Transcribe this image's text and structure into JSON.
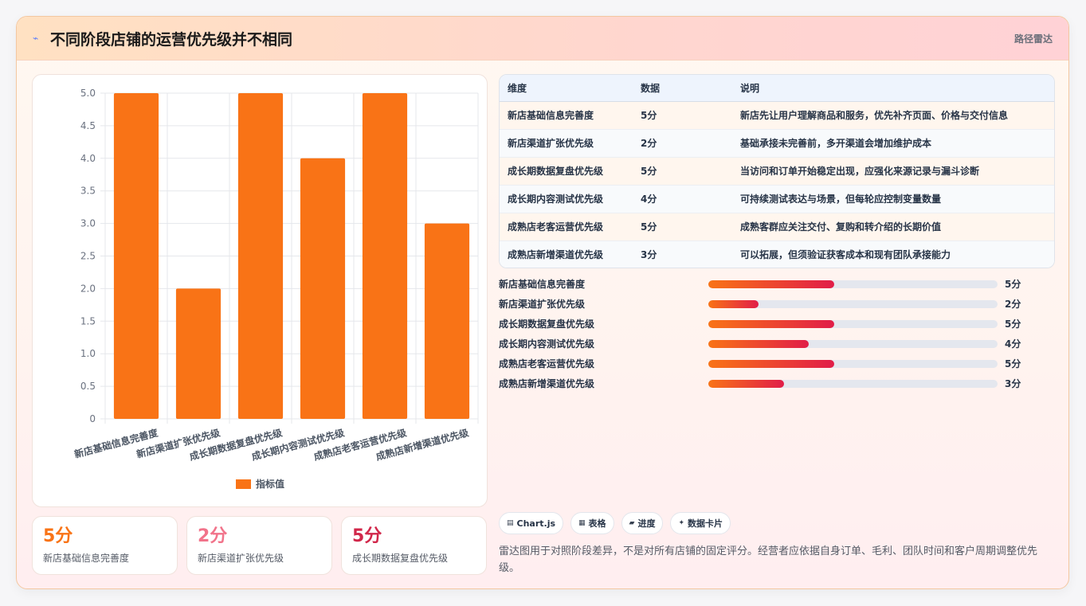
{
  "header": {
    "title": "不同阶段店铺的运营优先级并不相同",
    "badge": "路径雷达"
  },
  "chart_data": {
    "type": "bar",
    "categories": [
      "新店基础信息完善度",
      "新店渠道扩张优先级",
      "成长期数据复盘优先级",
      "成长期内容测试优先级",
      "成熟店老客运营优先级",
      "成熟店新增渠道优先级"
    ],
    "series": [
      {
        "name": "指标值",
        "values": [
          5,
          2,
          5,
          4,
          5,
          3
        ],
        "color": "#f97316"
      }
    ],
    "yticks": [
      "0",
      "0.5",
      "1.0",
      "1.5",
      "2.0",
      "2.5",
      "3.0",
      "3.5",
      "4.0",
      "4.5",
      "5.0"
    ],
    "ylim": [
      0,
      5
    ],
    "grid": true,
    "legend_position": "bottom"
  },
  "stats": [
    {
      "value": "5分",
      "label": "新店基础信息完善度",
      "color": "#f97316"
    },
    {
      "value": "2分",
      "label": "新店渠道扩张优先级",
      "color": "#f1738a"
    },
    {
      "value": "5分",
      "label": "成长期数据复盘优先级",
      "color": "#d1274a"
    }
  ],
  "table": {
    "headers": [
      "维度",
      "数据",
      "说明"
    ],
    "rows": [
      [
        "新店基础信息完善度",
        "5分",
        "新店先让用户理解商品和服务，优先补齐页面、价格与交付信息"
      ],
      [
        "新店渠道扩张优先级",
        "2分",
        "基础承接未完善前，多开渠道会增加维护成本"
      ],
      [
        "成长期数据复盘优先级",
        "5分",
        "当访问和订单开始稳定出现，应强化来源记录与漏斗诊断"
      ],
      [
        "成长期内容测试优先级",
        "4分",
        "可持续测试表达与场景，但每轮应控制变量数量"
      ],
      [
        "成熟店老客运营优先级",
        "5分",
        "成熟客群应关注交付、复购和转介绍的长期价值"
      ],
      [
        "成熟店新增渠道优先级",
        "3分",
        "可以拓展，但须验证获客成本和现有团队承接能力"
      ]
    ]
  },
  "progress": [
    {
      "label": "新店基础信息完善度",
      "value": "5分",
      "fraction": 0.435
    },
    {
      "label": "新店渠道扩张优先级",
      "value": "2分",
      "fraction": 0.174
    },
    {
      "label": "成长期数据复盘优先级",
      "value": "5分",
      "fraction": 0.435
    },
    {
      "label": "成长期内容测试优先级",
      "value": "4分",
      "fraction": 0.348
    },
    {
      "label": "成熟店老客运营优先级",
      "value": "5分",
      "fraction": 0.435
    },
    {
      "label": "成熟店新增渠道优先级",
      "value": "3分",
      "fraction": 0.261
    }
  ],
  "chips": [
    {
      "icon": "▤",
      "label": "Chart.js",
      "icon_name": "chart-icon"
    },
    {
      "icon": "▦",
      "label": "表格",
      "icon_name": "table-icon"
    },
    {
      "icon": "▰",
      "label": "进度",
      "icon_name": "progress-icon"
    },
    {
      "icon": "✦",
      "label": "数据卡片",
      "icon_name": "sparkle-icon"
    }
  ],
  "note": "雷达图用于对照阶段差异，不是对所有店铺的固定评分。经营者应依据自身订单、毛利、团队时间和客户周期调整优先级。"
}
